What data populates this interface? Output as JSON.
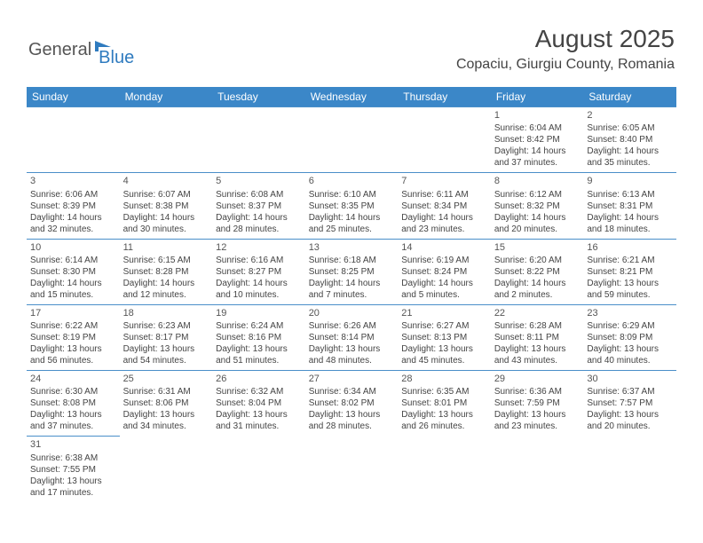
{
  "logo": {
    "text1": "General",
    "text2": "Blue"
  },
  "title": "August 2025",
  "location": "Copaciu, Giurgiu County, Romania",
  "colors": {
    "header_bg": "#3b87c8",
    "header_text": "#ffffff",
    "border": "#4a8fc9",
    "text": "#444444",
    "logo_blue": "#2f7bbf"
  },
  "day_headers": [
    "Sunday",
    "Monday",
    "Tuesday",
    "Wednesday",
    "Thursday",
    "Friday",
    "Saturday"
  ],
  "weeks": [
    [
      null,
      null,
      null,
      null,
      null,
      {
        "n": "1",
        "sr": "Sunrise: 6:04 AM",
        "ss": "Sunset: 8:42 PM",
        "d1": "Daylight: 14 hours",
        "d2": "and 37 minutes."
      },
      {
        "n": "2",
        "sr": "Sunrise: 6:05 AM",
        "ss": "Sunset: 8:40 PM",
        "d1": "Daylight: 14 hours",
        "d2": "and 35 minutes."
      }
    ],
    [
      {
        "n": "3",
        "sr": "Sunrise: 6:06 AM",
        "ss": "Sunset: 8:39 PM",
        "d1": "Daylight: 14 hours",
        "d2": "and 32 minutes."
      },
      {
        "n": "4",
        "sr": "Sunrise: 6:07 AM",
        "ss": "Sunset: 8:38 PM",
        "d1": "Daylight: 14 hours",
        "d2": "and 30 minutes."
      },
      {
        "n": "5",
        "sr": "Sunrise: 6:08 AM",
        "ss": "Sunset: 8:37 PM",
        "d1": "Daylight: 14 hours",
        "d2": "and 28 minutes."
      },
      {
        "n": "6",
        "sr": "Sunrise: 6:10 AM",
        "ss": "Sunset: 8:35 PM",
        "d1": "Daylight: 14 hours",
        "d2": "and 25 minutes."
      },
      {
        "n": "7",
        "sr": "Sunrise: 6:11 AM",
        "ss": "Sunset: 8:34 PM",
        "d1": "Daylight: 14 hours",
        "d2": "and 23 minutes."
      },
      {
        "n": "8",
        "sr": "Sunrise: 6:12 AM",
        "ss": "Sunset: 8:32 PM",
        "d1": "Daylight: 14 hours",
        "d2": "and 20 minutes."
      },
      {
        "n": "9",
        "sr": "Sunrise: 6:13 AM",
        "ss": "Sunset: 8:31 PM",
        "d1": "Daylight: 14 hours",
        "d2": "and 18 minutes."
      }
    ],
    [
      {
        "n": "10",
        "sr": "Sunrise: 6:14 AM",
        "ss": "Sunset: 8:30 PM",
        "d1": "Daylight: 14 hours",
        "d2": "and 15 minutes."
      },
      {
        "n": "11",
        "sr": "Sunrise: 6:15 AM",
        "ss": "Sunset: 8:28 PM",
        "d1": "Daylight: 14 hours",
        "d2": "and 12 minutes."
      },
      {
        "n": "12",
        "sr": "Sunrise: 6:16 AM",
        "ss": "Sunset: 8:27 PM",
        "d1": "Daylight: 14 hours",
        "d2": "and 10 minutes."
      },
      {
        "n": "13",
        "sr": "Sunrise: 6:18 AM",
        "ss": "Sunset: 8:25 PM",
        "d1": "Daylight: 14 hours",
        "d2": "and 7 minutes."
      },
      {
        "n": "14",
        "sr": "Sunrise: 6:19 AM",
        "ss": "Sunset: 8:24 PM",
        "d1": "Daylight: 14 hours",
        "d2": "and 5 minutes."
      },
      {
        "n": "15",
        "sr": "Sunrise: 6:20 AM",
        "ss": "Sunset: 8:22 PM",
        "d1": "Daylight: 14 hours",
        "d2": "and 2 minutes."
      },
      {
        "n": "16",
        "sr": "Sunrise: 6:21 AM",
        "ss": "Sunset: 8:21 PM",
        "d1": "Daylight: 13 hours",
        "d2": "and 59 minutes."
      }
    ],
    [
      {
        "n": "17",
        "sr": "Sunrise: 6:22 AM",
        "ss": "Sunset: 8:19 PM",
        "d1": "Daylight: 13 hours",
        "d2": "and 56 minutes."
      },
      {
        "n": "18",
        "sr": "Sunrise: 6:23 AM",
        "ss": "Sunset: 8:17 PM",
        "d1": "Daylight: 13 hours",
        "d2": "and 54 minutes."
      },
      {
        "n": "19",
        "sr": "Sunrise: 6:24 AM",
        "ss": "Sunset: 8:16 PM",
        "d1": "Daylight: 13 hours",
        "d2": "and 51 minutes."
      },
      {
        "n": "20",
        "sr": "Sunrise: 6:26 AM",
        "ss": "Sunset: 8:14 PM",
        "d1": "Daylight: 13 hours",
        "d2": "and 48 minutes."
      },
      {
        "n": "21",
        "sr": "Sunrise: 6:27 AM",
        "ss": "Sunset: 8:13 PM",
        "d1": "Daylight: 13 hours",
        "d2": "and 45 minutes."
      },
      {
        "n": "22",
        "sr": "Sunrise: 6:28 AM",
        "ss": "Sunset: 8:11 PM",
        "d1": "Daylight: 13 hours",
        "d2": "and 43 minutes."
      },
      {
        "n": "23",
        "sr": "Sunrise: 6:29 AM",
        "ss": "Sunset: 8:09 PM",
        "d1": "Daylight: 13 hours",
        "d2": "and 40 minutes."
      }
    ],
    [
      {
        "n": "24",
        "sr": "Sunrise: 6:30 AM",
        "ss": "Sunset: 8:08 PM",
        "d1": "Daylight: 13 hours",
        "d2": "and 37 minutes."
      },
      {
        "n": "25",
        "sr": "Sunrise: 6:31 AM",
        "ss": "Sunset: 8:06 PM",
        "d1": "Daylight: 13 hours",
        "d2": "and 34 minutes."
      },
      {
        "n": "26",
        "sr": "Sunrise: 6:32 AM",
        "ss": "Sunset: 8:04 PM",
        "d1": "Daylight: 13 hours",
        "d2": "and 31 minutes."
      },
      {
        "n": "27",
        "sr": "Sunrise: 6:34 AM",
        "ss": "Sunset: 8:02 PM",
        "d1": "Daylight: 13 hours",
        "d2": "and 28 minutes."
      },
      {
        "n": "28",
        "sr": "Sunrise: 6:35 AM",
        "ss": "Sunset: 8:01 PM",
        "d1": "Daylight: 13 hours",
        "d2": "and 26 minutes."
      },
      {
        "n": "29",
        "sr": "Sunrise: 6:36 AM",
        "ss": "Sunset: 7:59 PM",
        "d1": "Daylight: 13 hours",
        "d2": "and 23 minutes."
      },
      {
        "n": "30",
        "sr": "Sunrise: 6:37 AM",
        "ss": "Sunset: 7:57 PM",
        "d1": "Daylight: 13 hours",
        "d2": "and 20 minutes."
      }
    ],
    [
      {
        "n": "31",
        "sr": "Sunrise: 6:38 AM",
        "ss": "Sunset: 7:55 PM",
        "d1": "Daylight: 13 hours",
        "d2": "and 17 minutes."
      },
      null,
      null,
      null,
      null,
      null,
      null
    ]
  ]
}
